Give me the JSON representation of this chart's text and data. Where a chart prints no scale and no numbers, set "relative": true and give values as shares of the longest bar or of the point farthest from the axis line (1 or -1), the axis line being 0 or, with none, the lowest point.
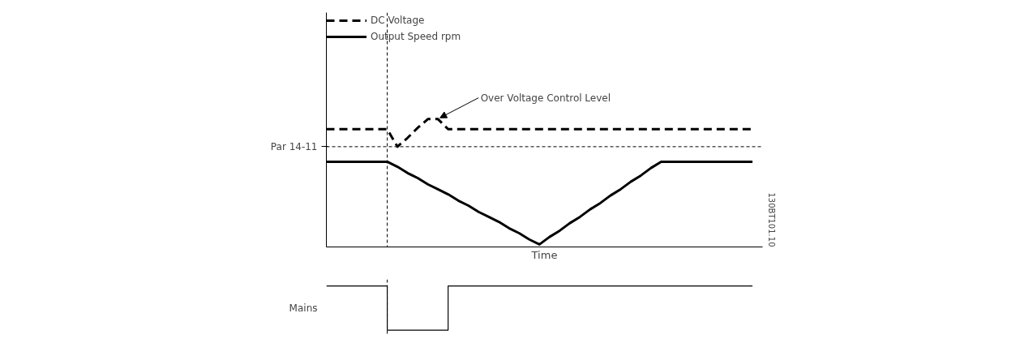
{
  "chart_data": [
    {
      "type": "line",
      "relative": true,
      "xlabel": "Time",
      "legend": "top left",
      "marker": "none",
      "categories": [
        null,
        null,
        null,
        null,
        null,
        null,
        null,
        null,
        null,
        null,
        null,
        null,
        null,
        null,
        null,
        null,
        null,
        null,
        null,
        null,
        null,
        null,
        null,
        null,
        null,
        null,
        null,
        null,
        null,
        null,
        null,
        null,
        null,
        null,
        null,
        null,
        null,
        null,
        null,
        null,
        null,
        null,
        null
      ],
      "series": [
        {
          "name": "DC Voltage",
          "color": "#000000",
          "line_style": "dashed",
          "values": [
            0.92,
            0.92,
            0.92,
            0.92,
            0.92,
            0.92,
            0.92,
            0.78,
            0.85,
            0.93,
            1,
            1,
            0.92,
            0.92,
            0.92,
            0.92,
            0.92,
            0.92,
            0.92,
            0.92,
            0.92,
            0.92,
            0.92,
            0.92,
            0.92,
            0.92,
            0.92,
            0.92,
            0.92,
            0.92,
            0.92,
            0.92,
            0.92,
            0.92,
            0.92,
            0.92,
            0.92,
            0.92,
            0.92,
            0.92,
            0.92,
            0.92,
            0.92
          ]
        },
        {
          "name": "Output Speed rpm",
          "color": "#000000",
          "line_style": "solid",
          "values": [
            0.66,
            0.66,
            0.66,
            0.66,
            0.66,
            0.66,
            0.66,
            0.62,
            0.57,
            0.53,
            0.48,
            0.44,
            0.4,
            0.35,
            0.31,
            0.26,
            0.22,
            0.18,
            0.13,
            0.09,
            0.04,
            0,
            0.06,
            0.11,
            0.17,
            0.22,
            0.28,
            0.33,
            0.39,
            0.44,
            0.5,
            0.55,
            0.61,
            0.66,
            0.66,
            0.66,
            0.66,
            0.66,
            0.66,
            0.66,
            0.66,
            0.66,
            0.66
          ]
        }
      ],
      "ref_lines": [
        {
          "axis": "y",
          "value": 0.78,
          "label": "Par 14-11"
        }
      ],
      "annotations": [
        "Over Voltage Control Level",
        "130BT101.10"
      ]
    },
    {
      "type": "step",
      "relative": true,
      "legend": false,
      "categories": [
        null,
        null,
        null,
        null,
        null,
        null,
        null,
        null,
        null,
        null,
        null,
        null,
        null,
        null,
        null,
        null,
        null,
        null,
        null,
        null,
        null,
        null,
        null,
        null,
        null,
        null,
        null,
        null,
        null,
        null,
        null,
        null,
        null,
        null,
        null,
        null,
        null,
        null,
        null,
        null,
        null,
        null,
        null
      ],
      "series": [
        {
          "name": "Mains",
          "color": "#000000",
          "values": [
            1,
            1,
            1,
            1,
            1,
            1,
            0,
            0,
            0,
            0,
            0,
            0,
            1,
            1,
            1,
            1,
            1,
            1,
            1,
            1,
            1,
            1,
            1,
            1,
            1,
            1,
            1,
            1,
            1,
            1,
            1,
            1,
            1,
            1,
            1,
            1,
            1,
            1,
            1,
            1,
            1,
            1,
            1
          ]
        }
      ]
    }
  ]
}
